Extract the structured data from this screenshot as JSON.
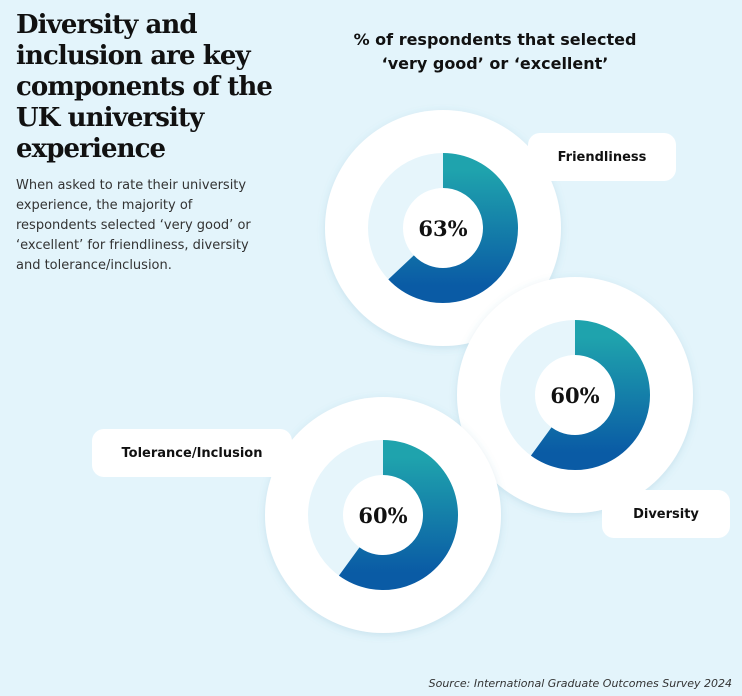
{
  "headline": "Diversity and inclusion are key components of the UK university experience",
  "intro": "When asked to rate their university experience, the majority of respondents selected ‘very good’ or ‘excellent’ for friendliness, diversity and tolerance/inclusion.",
  "source": "Source: International Graduate Outcomes Survey 2024",
  "colors": {
    "background": "#e3f4fb",
    "ring_start": "#1fa3ad",
    "ring_end": "#0a5ba5",
    "track": "#e6f5fb",
    "card": "#ffffff"
  },
  "chart_data": {
    "type": "donut",
    "title": "% of respondents that selected ‘very good’ or ‘excellent’",
    "unit": "%",
    "series": [
      {
        "name": "Friendliness",
        "value": 63,
        "label": "63%"
      },
      {
        "name": "Diversity",
        "value": 60,
        "label": "60%"
      },
      {
        "name": "Tolerance/Inclusion",
        "value": 60,
        "label": "60%"
      }
    ]
  }
}
